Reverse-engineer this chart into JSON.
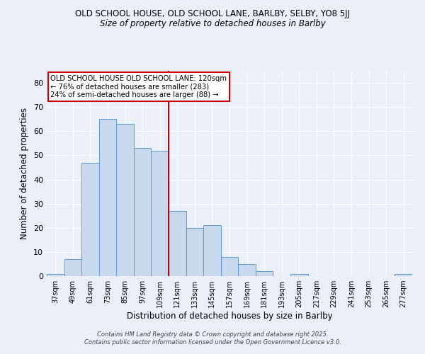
{
  "title1": "OLD SCHOOL HOUSE, OLD SCHOOL LANE, BARLBY, SELBY, YO8 5JJ",
  "title2": "Size of property relative to detached houses in Barlby",
  "xlabel": "Distribution of detached houses by size in Barlby",
  "ylabel": "Number of detached properties",
  "bar_labels": [
    "37sqm",
    "49sqm",
    "61sqm",
    "73sqm",
    "85sqm",
    "97sqm",
    "109sqm",
    "121sqm",
    "133sqm",
    "145sqm",
    "157sqm",
    "169sqm",
    "181sqm",
    "193sqm",
    "205sqm",
    "217sqm",
    "229sqm",
    "241sqm",
    "253sqm",
    "265sqm",
    "277sqm"
  ],
  "bar_values": [
    1,
    7,
    47,
    65,
    63,
    53,
    52,
    27,
    20,
    21,
    8,
    5,
    2,
    0,
    1,
    0,
    0,
    0,
    0,
    0,
    1
  ],
  "bar_color": "#c9d9ed",
  "bar_edgecolor": "#5b9bd5",
  "vline_color": "#cc0000",
  "ylim": [
    0,
    85
  ],
  "yticks": [
    0,
    10,
    20,
    30,
    40,
    50,
    60,
    70,
    80
  ],
  "annotation_title": "OLD SCHOOL HOUSE OLD SCHOOL LANE: 120sqm",
  "annotation_line1": "← 76% of detached houses are smaller (283)",
  "annotation_line2": "24% of semi-detached houses are larger (88) →",
  "annotation_box_color": "#ffffff",
  "annotation_box_edgecolor": "#cc0000",
  "footer": "Contains HM Land Registry data © Crown copyright and database right 2025.\nContains public sector information licensed under the Open Government Licence v3.0.",
  "background_color": "#eaeff8",
  "grid_color": "#ffffff"
}
